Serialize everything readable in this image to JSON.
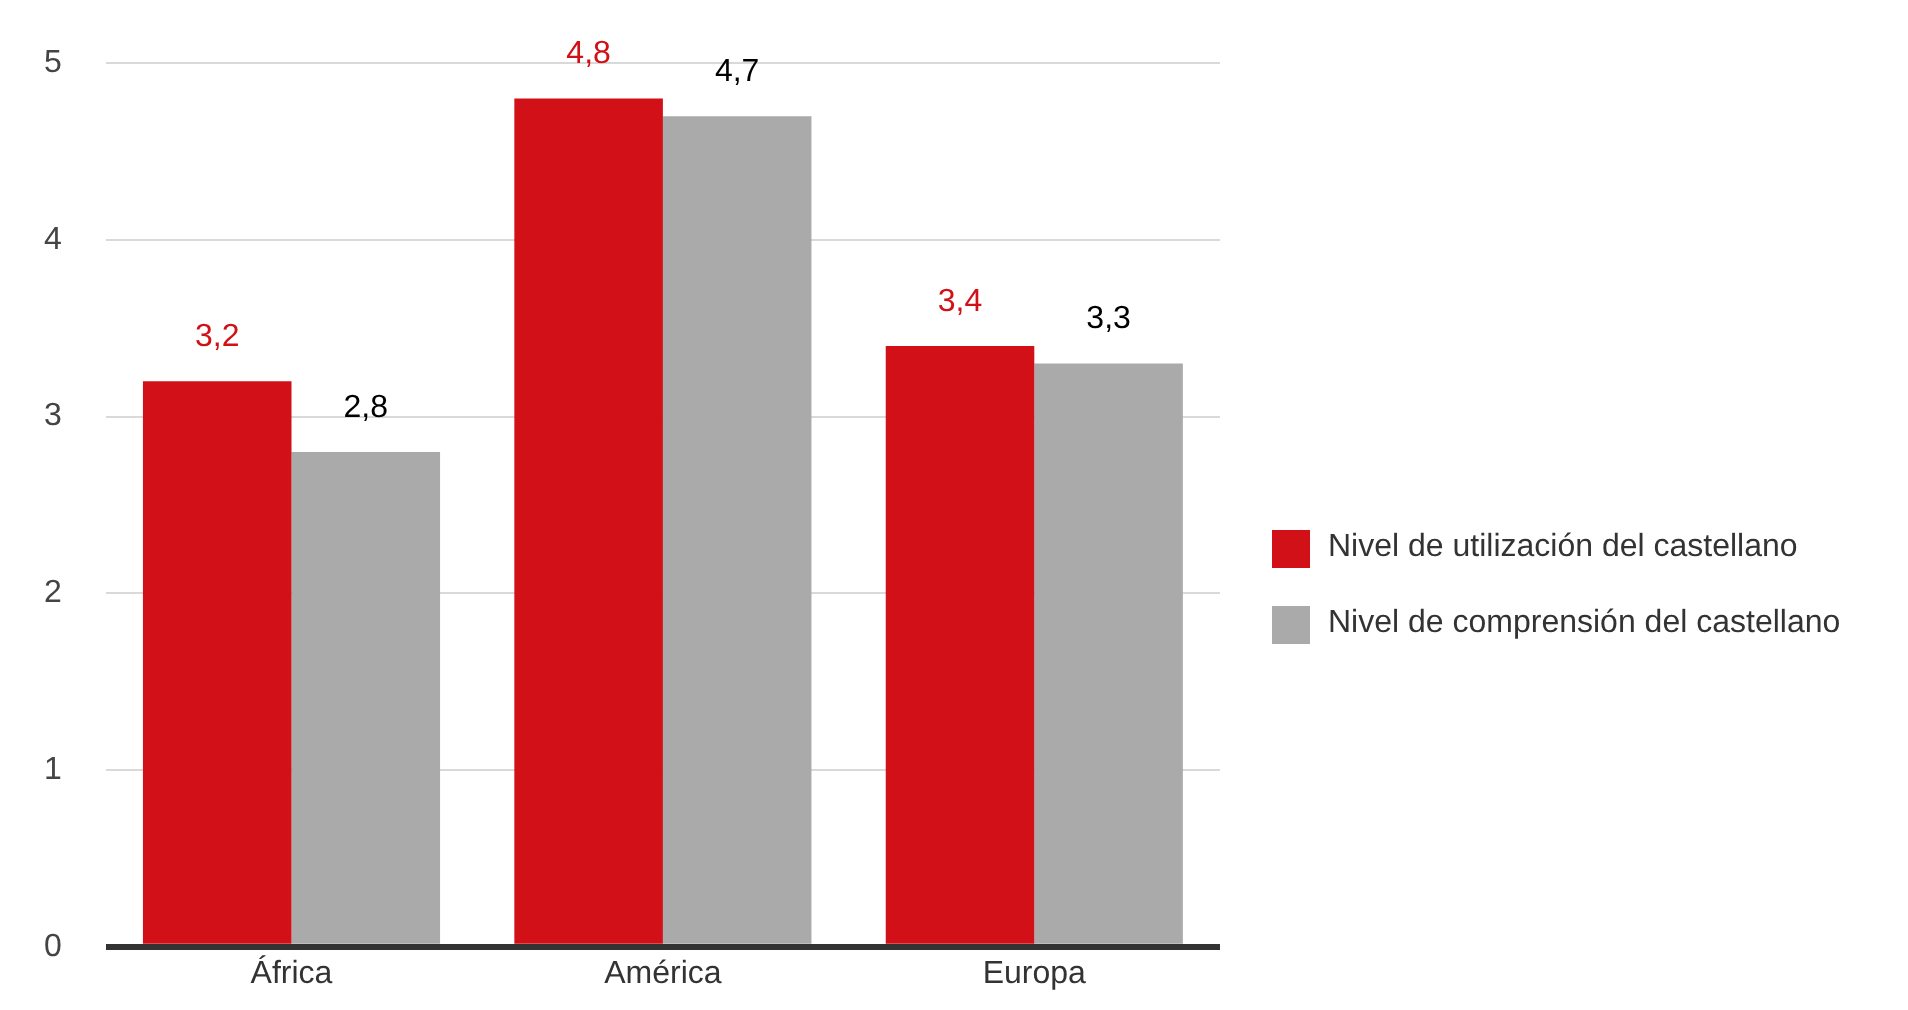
{
  "chart_data": {
    "type": "bar",
    "categories": [
      "África",
      "América",
      "Europa"
    ],
    "series": [
      {
        "name": "Nivel de utilización del castellano",
        "color": "#d11017",
        "values": [
          3.2,
          4.8,
          3.4
        ],
        "value_labels": [
          "3,2",
          "4,8",
          "3,4"
        ]
      },
      {
        "name": "Nivel de comprensión del castellano",
        "color": "#aaaaaa",
        "values": [
          2.8,
          4.7,
          3.3
        ],
        "value_labels": [
          "2,8",
          "4,7",
          "3,3"
        ]
      }
    ],
    "ylim": [
      0,
      5
    ],
    "yticks": [
      0,
      1,
      2,
      3,
      4,
      5
    ],
    "grid": "y",
    "legend": "right"
  }
}
